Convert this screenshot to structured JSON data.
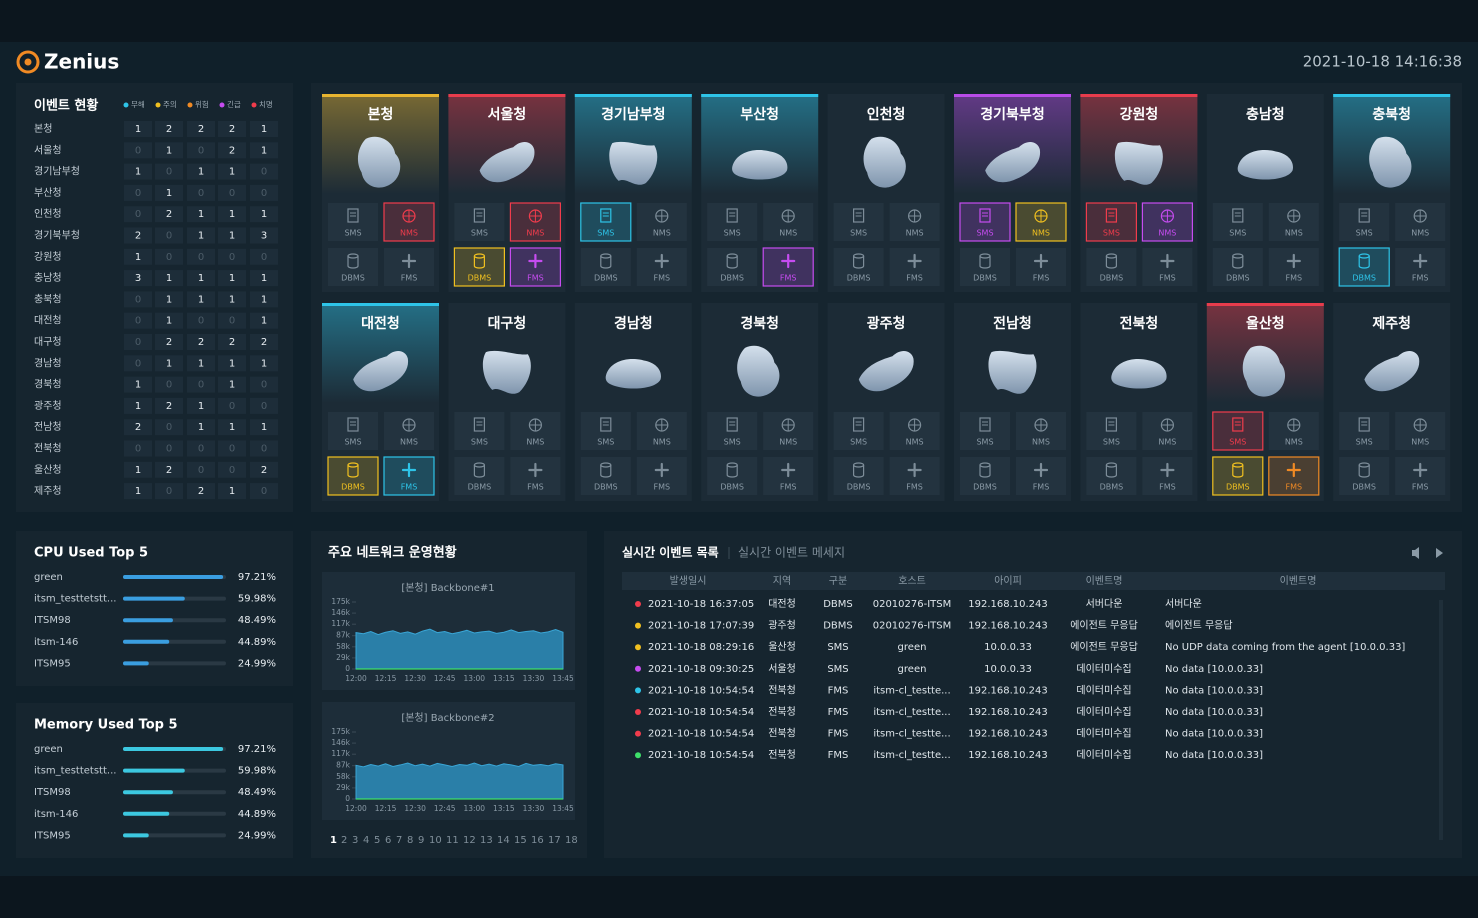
{
  "header": {
    "logo": "Zenius",
    "datetime": "2021-10-18 14:16:38"
  },
  "event_status": {
    "title": "이벤트 현황",
    "levels": [
      {
        "name": "무해",
        "color": "#2ec4e8"
      },
      {
        "name": "주의",
        "color": "#f0c020"
      },
      {
        "name": "위험",
        "color": "#f08a24"
      },
      {
        "name": "긴급",
        "color": "#c64cf0"
      },
      {
        "name": "치명",
        "color": "#f03c4c"
      }
    ],
    "rows": [
      {
        "name": "본청",
        "counts": [
          1,
          2,
          2,
          2,
          1
        ]
      },
      {
        "name": "서울청",
        "counts": [
          0,
          1,
          0,
          2,
          1
        ]
      },
      {
        "name": "경기남부청",
        "counts": [
          1,
          0,
          1,
          1,
          0
        ]
      },
      {
        "name": "부산청",
        "counts": [
          0,
          1,
          0,
          0,
          0
        ]
      },
      {
        "name": "인천청",
        "counts": [
          0,
          2,
          1,
          1,
          1
        ]
      },
      {
        "name": "경기북부청",
        "counts": [
          2,
          0,
          1,
          1,
          3
        ]
      },
      {
        "name": "강원청",
        "counts": [
          1,
          0,
          0,
          0,
          0
        ]
      },
      {
        "name": "충남청",
        "counts": [
          3,
          1,
          1,
          1,
          1
        ]
      },
      {
        "name": "충북청",
        "counts": [
          0,
          1,
          1,
          1,
          1
        ]
      },
      {
        "name": "대전청",
        "counts": [
          0,
          1,
          0,
          0,
          1
        ]
      },
      {
        "name": "대구청",
        "counts": [
          0,
          2,
          2,
          2,
          2
        ]
      },
      {
        "name": "경남청",
        "counts": [
          0,
          1,
          1,
          1,
          1
        ]
      },
      {
        "name": "경북청",
        "counts": [
          1,
          0,
          0,
          1,
          0
        ]
      },
      {
        "name": "광주청",
        "counts": [
          1,
          2,
          1,
          0,
          0
        ]
      },
      {
        "name": "전남청",
        "counts": [
          2,
          0,
          1,
          1,
          1
        ]
      },
      {
        "name": "전북청",
        "counts": [
          0,
          0,
          0,
          0,
          0
        ]
      },
      {
        "name": "울산청",
        "counts": [
          1,
          2,
          0,
          0,
          2
        ]
      },
      {
        "name": "제주청",
        "counts": [
          1,
          0,
          2,
          1,
          0
        ]
      }
    ]
  },
  "regions": {
    "systems": [
      "SMS",
      "NMS",
      "DBMS",
      "FMS"
    ],
    "cards": [
      {
        "name": "본청",
        "accent": "#e8b530",
        "status": [
          null,
          "#f03c4c",
          null,
          null
        ]
      },
      {
        "name": "서울청",
        "accent": "#e83c4c",
        "status": [
          null,
          "#f03c4c",
          "#f0c020",
          "#c64cf0"
        ]
      },
      {
        "name": "경기남부청",
        "accent": "#2ec4e8",
        "status": [
          "#2ec4e8",
          null,
          null,
          null
        ]
      },
      {
        "name": "부산청",
        "accent": "#2ec4e8",
        "status": [
          null,
          null,
          null,
          "#c64cf0"
        ]
      },
      {
        "name": "인천청",
        "accent": null,
        "status": [
          null,
          null,
          null,
          null
        ]
      },
      {
        "name": "경기북부청",
        "accent": "#b84ce8",
        "status": [
          "#c64cf0",
          "#f0c020",
          null,
          null
        ]
      },
      {
        "name": "강원청",
        "accent": "#e83c4c",
        "status": [
          "#f03c4c",
          "#c64cf0",
          null,
          null
        ]
      },
      {
        "name": "충남청",
        "accent": null,
        "status": [
          null,
          null,
          null,
          null
        ]
      },
      {
        "name": "충북청",
        "accent": "#2ec4e8",
        "status": [
          null,
          null,
          "#2ec4e8",
          null
        ]
      },
      {
        "name": "대전청",
        "accent": "#2ec4e8",
        "status": [
          null,
          null,
          "#f0c020",
          "#2ec4e8"
        ]
      },
      {
        "name": "대구청",
        "accent": null,
        "status": [
          null,
          null,
          null,
          null
        ]
      },
      {
        "name": "경남청",
        "accent": null,
        "status": [
          null,
          null,
          null,
          null
        ]
      },
      {
        "name": "경북청",
        "accent": null,
        "status": [
          null,
          null,
          null,
          null
        ]
      },
      {
        "name": "광주청",
        "accent": null,
        "status": [
          null,
          null,
          null,
          null
        ]
      },
      {
        "name": "전남청",
        "accent": null,
        "status": [
          null,
          null,
          null,
          null
        ]
      },
      {
        "name": "전북청",
        "accent": null,
        "status": [
          null,
          null,
          null,
          null
        ]
      },
      {
        "name": "울산청",
        "accent": "#e83c4c",
        "status": [
          "#f03c4c",
          null,
          "#f0c020",
          "#f08a24"
        ]
      },
      {
        "name": "제주청",
        "accent": null,
        "status": [
          null,
          null,
          null,
          null
        ]
      }
    ]
  },
  "chart_data": [
    {
      "type": "hbar",
      "title": "CPU Used Top 5",
      "categories": [
        "green",
        "itsm_testtetstt...",
        "ITSM98",
        "itsm-146",
        "ITSM95"
      ],
      "values": [
        97.21,
        59.98,
        48.49,
        44.89,
        24.99
      ],
      "value_labels": [
        "97.21%",
        "59.98%",
        "48.49%",
        "44.89%",
        "24.99%"
      ],
      "xlim": [
        0,
        100
      ],
      "color": "#3a9ee0"
    },
    {
      "type": "hbar",
      "title": "Memory Used Top 5",
      "categories": [
        "green",
        "itsm_testtetstt...",
        "ITSM98",
        "itsm-146",
        "ITSM95"
      ],
      "values": [
        97.21,
        59.98,
        48.49,
        44.89,
        24.99
      ],
      "value_labels": [
        "97.21%",
        "59.98%",
        "48.49%",
        "44.89%",
        "24.99%"
      ],
      "xlim": [
        0,
        100
      ],
      "color": "#3cc8e0"
    },
    {
      "type": "area",
      "title": "[본청] Backbone#1",
      "categories": [
        "12:00",
        null,
        null,
        null,
        "12:15",
        null,
        null,
        null,
        "12:30",
        null,
        null,
        null,
        "12:45",
        null,
        null,
        null,
        "13:00",
        null,
        null,
        null,
        "13:15",
        null,
        null,
        null,
        "13:30",
        null,
        null,
        null,
        "13:45"
      ],
      "values": [
        95000,
        92000,
        98000,
        90000,
        96000,
        100000,
        93000,
        97000,
        91000,
        99000,
        104000,
        95000,
        98000,
        92000,
        96000,
        101000,
        94000,
        97000,
        99000,
        93000,
        96000,
        102000,
        95000,
        98000,
        100000,
        94000,
        97000,
        103000,
        96000
      ],
      "ylim": [
        0,
        175000
      ],
      "yticks": [
        0,
        {
          "value": 29000,
          "label": "29k"
        },
        {
          "value": 58000,
          "label": "58k"
        },
        {
          "value": 87000,
          "label": "87k"
        },
        {
          "value": 117000,
          "label": "117k"
        },
        {
          "value": 146000,
          "label": "146k"
        },
        {
          "value": 175000,
          "label": "175k"
        }
      ],
      "color": "#2a7fa8"
    },
    {
      "type": "area",
      "title": "[본청] Backbone#2",
      "categories": [
        "12:00",
        null,
        null,
        null,
        "12:15",
        null,
        null,
        null,
        "12:30",
        null,
        null,
        null,
        "12:45",
        null,
        null,
        null,
        "13:00",
        null,
        null,
        null,
        "13:15",
        null,
        null,
        null,
        "13:30",
        null,
        null,
        null,
        "13:45"
      ],
      "values": [
        88000,
        84000,
        90000,
        86000,
        92000,
        85000,
        89000,
        94000,
        87000,
        91000,
        86000,
        93000,
        89000,
        85000,
        90000,
        88000,
        94000,
        87000,
        91000,
        86000,
        92000,
        89000,
        85000,
        93000,
        88000,
        90000,
        87000,
        92000,
        89000
      ],
      "ylim": [
        0,
        175000
      ],
      "yticks": [
        0,
        {
          "value": 29000,
          "label": "29k"
        },
        {
          "value": 58000,
          "label": "58k"
        },
        {
          "value": 87000,
          "label": "87k"
        },
        {
          "value": 117000,
          "label": "117k"
        },
        {
          "value": 146000,
          "label": "146k"
        },
        {
          "value": 175000,
          "label": "175k"
        }
      ],
      "color": "#2a7fa8"
    }
  ],
  "network": {
    "title": "주요 네트워크 운영현황",
    "pages": [
      1,
      2,
      3,
      4,
      5,
      6,
      7,
      8,
      9,
      10,
      11,
      12,
      13,
      14,
      15,
      16,
      17,
      18
    ],
    "current_page": 1
  },
  "event_list": {
    "title": "실시간 이벤트 목록",
    "tab": "실시간 이벤트 메세지",
    "columns": [
      "발생일시",
      "지역",
      "구분",
      "호스트",
      "아이피",
      "이벤트명",
      "이벤트명"
    ],
    "rows": [
      {
        "color": "#f03c4c",
        "cells": [
          "2021-10-18 16:37:05",
          "대전청",
          "DBMS",
          "02010276-ITSM",
          "192.168.10.243",
          "서버다운",
          "서버다운"
        ]
      },
      {
        "color": "#f0c020",
        "cells": [
          "2021-10-18 17:07:39",
          "광주청",
          "DBMS",
          "02010276-ITSM",
          "192.168.10.243",
          "에이전트 무응답",
          "에이전트 무응답"
        ]
      },
      {
        "color": "#f0c020",
        "cells": [
          "2021-10-18 08:29:16",
          "울산청",
          "SMS",
          "green",
          "10.0.0.33",
          "에이전트 무응답",
          "No UDP data coming from the agent [10.0.0.33]"
        ]
      },
      {
        "color": "#c64cf0",
        "cells": [
          "2021-10-18 09:30:25",
          "서울청",
          "SMS",
          "green",
          "10.0.0.33",
          "데이터미수집",
          "No data [10.0.0.33]"
        ]
      },
      {
        "color": "#2ec4e8",
        "cells": [
          "2021-10-18 10:54:54",
          "전북청",
          "FMS",
          "itsm-cl_testte...",
          "192.168.10.243",
          "데이터미수집",
          "No data [10.0.0.33]"
        ]
      },
      {
        "color": "#f03c4c",
        "cells": [
          "2021-10-18 10:54:54",
          "전북청",
          "FMS",
          "itsm-cl_testte...",
          "192.168.10.243",
          "데이터미수집",
          "No data [10.0.0.33]"
        ]
      },
      {
        "color": "#f03c4c",
        "cells": [
          "2021-10-18 10:54:54",
          "전북청",
          "FMS",
          "itsm-cl_testte...",
          "192.168.10.243",
          "데이터미수집",
          "No data [10.0.0.33]"
        ]
      },
      {
        "color": "#3ee06a",
        "cells": [
          "2021-10-18 10:54:54",
          "전북청",
          "FMS",
          "itsm-cl_testte...",
          "192.168.10.243",
          "데이터미수집",
          "No data [10.0.0.33]"
        ]
      }
    ]
  }
}
